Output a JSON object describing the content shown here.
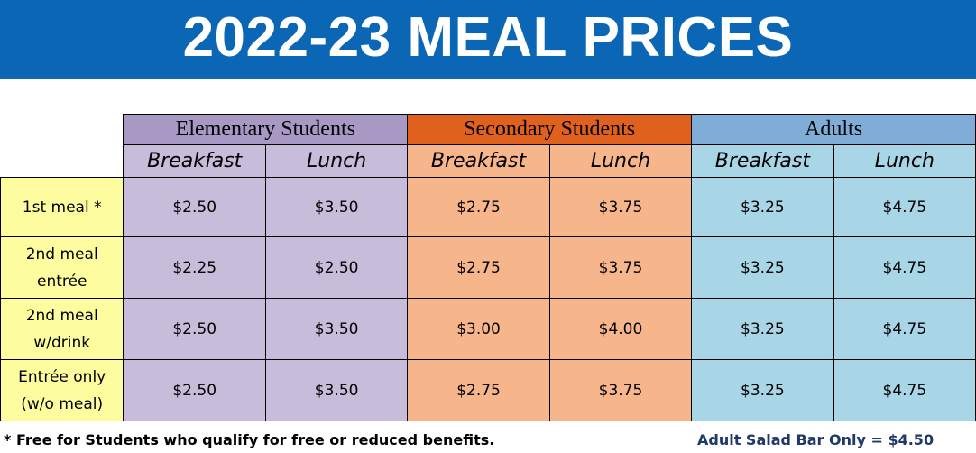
{
  "title": "2022-23 MEAL PRICES",
  "colors": {
    "banner": "#0b67b5",
    "elementary_header": "#a898c4",
    "elementary_cell": "#c7bcd9",
    "secondary_header": "#e0611e",
    "secondary_cell": "#f6b58b",
    "adults_header": "#80acd8",
    "adults_cell": "#a9d6e6",
    "row_label": "#fdfd9f",
    "salad_text": "#1f3a68"
  },
  "groups": [
    {
      "label": "Elementary Students"
    },
    {
      "label": "Secondary Students"
    },
    {
      "label": "Adults"
    }
  ],
  "subheaders": [
    "Breakfast",
    "Lunch",
    "Breakfast",
    "Lunch",
    "Breakfast",
    "Lunch"
  ],
  "rows": [
    {
      "label_line1": "1st meal *",
      "label_line2": "",
      "prices": [
        "$2.50",
        "$3.50",
        "$2.75",
        "$3.75",
        "$3.25",
        "$4.75"
      ]
    },
    {
      "label_line1": "2nd meal",
      "label_line2": "entrée",
      "prices": [
        "$2.25",
        "$2.50",
        "$2.75",
        "$3.75",
        "$3.25",
        "$4.75"
      ]
    },
    {
      "label_line1": "2nd meal",
      "label_line2": "w/drink",
      "prices": [
        "$2.50",
        "$3.50",
        "$3.00",
        "$4.00",
        "$3.25",
        "$4.75"
      ]
    },
    {
      "label_line1": "Entrée only",
      "label_line2": "(w/o meal)",
      "prices": [
        "$2.50",
        "$3.50",
        "$2.75",
        "$3.75",
        "$3.25",
        "$4.75"
      ]
    }
  ],
  "footnote": "* Free for Students who qualify for free or reduced benefits.",
  "salad_bar": "Adult Salad Bar Only = $4.50"
}
